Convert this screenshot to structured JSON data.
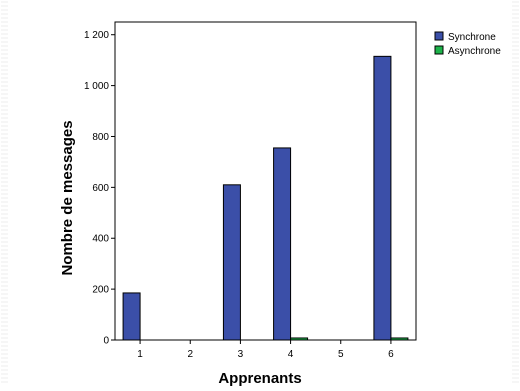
{
  "colors": {
    "background": "#ffffff",
    "plot_background": "#ffffff",
    "frame": "#000000",
    "side_stripes": "#ececec"
  },
  "chart_data": {
    "type": "bar",
    "title": "",
    "xlabel": "Apprenants",
    "ylabel": "Nombre de messages",
    "categories": [
      "1",
      "2",
      "3",
      "4",
      "5",
      "6"
    ],
    "series": [
      {
        "name": "Synchrone",
        "color": "#3b4fa8",
        "values": [
          185,
          0,
          610,
          755,
          0,
          1115
        ]
      },
      {
        "name": "Asynchrone",
        "color": "#1db34a",
        "values": [
          0,
          0,
          0,
          8,
          0,
          8
        ]
      }
    ],
    "ylim": [
      0,
      1250
    ],
    "yticks": [
      0,
      200,
      400,
      600,
      800,
      1000,
      1200
    ],
    "ytick_labels": [
      "0",
      "200",
      "400",
      "600",
      "800",
      "1 000",
      "1 200"
    ],
    "grid": false,
    "legend_position": "top-right"
  }
}
